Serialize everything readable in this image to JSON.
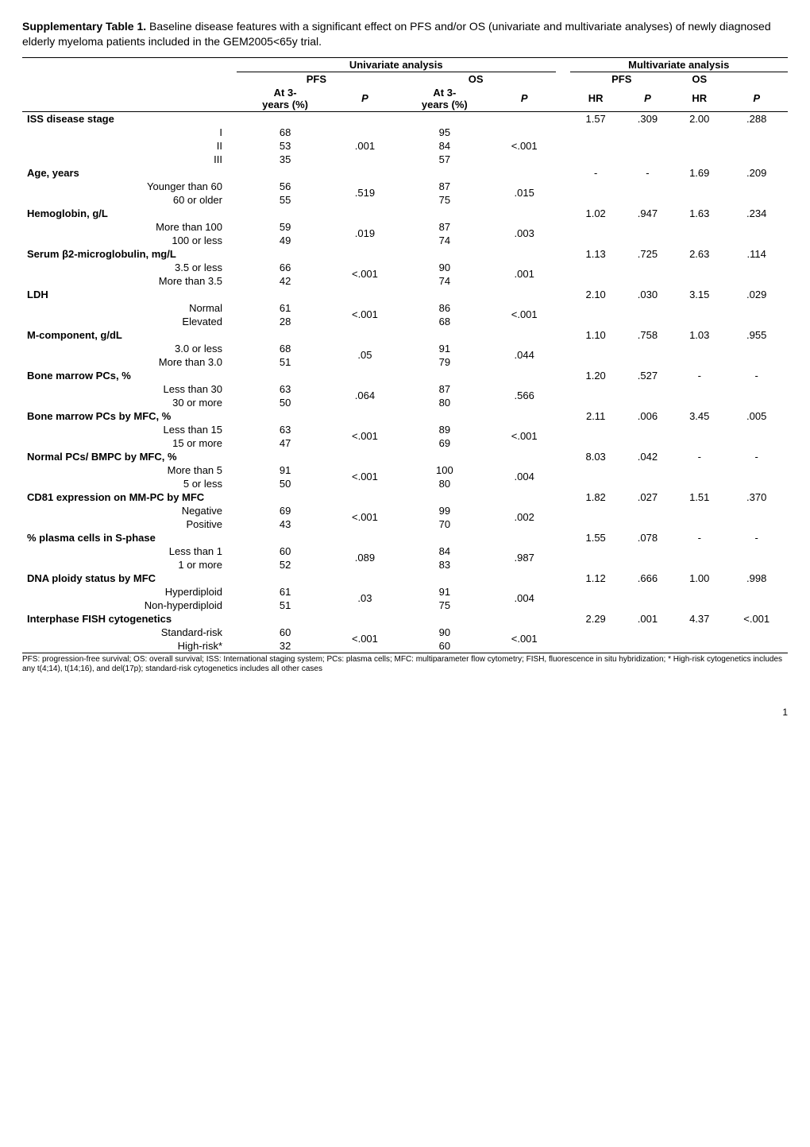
{
  "title_bold": "Supplementary Table 1.",
  "title_rest": " Baseline disease features with a significant effect on PFS and/or OS (univariate and multivariate analyses) of newly diagnosed elderly myeloma patients included in the GEM2005<65y trial.",
  "headers": {
    "uni": "Univariate analysis",
    "multi": "Multivariate analysis",
    "pfs": "PFS",
    "os": "OS",
    "at3": "At 3-years (%)",
    "p": "P",
    "hr": "HR"
  },
  "groups": [
    {
      "name": "ISS disease stage",
      "multi": {
        "pfs_hr": "1.57",
        "pfs_p": ".309",
        "os_hr": "2.00",
        "os_p": ".288"
      },
      "uni_p_pfs": ".001",
      "uni_p_os": "<.001",
      "rows": [
        {
          "label": "I",
          "pfs": "68",
          "os": "95"
        },
        {
          "label": "II",
          "pfs": "53",
          "os": "84"
        },
        {
          "label": "III",
          "pfs": "35",
          "os": "57"
        }
      ]
    },
    {
      "name": "Age, years",
      "multi": {
        "pfs_hr": "-",
        "pfs_p": "-",
        "os_hr": "1.69",
        "os_p": ".209"
      },
      "uni_p_pfs": ".519",
      "uni_p_os": ".015",
      "rows": [
        {
          "label": "Younger than 60",
          "pfs": "56",
          "os": "87"
        },
        {
          "label": "60 or older",
          "pfs": "55",
          "os": "75"
        }
      ]
    },
    {
      "name": "Hemoglobin, g/L",
      "multi": {
        "pfs_hr": "1.02",
        "pfs_p": ".947",
        "os_hr": "1.63",
        "os_p": ".234"
      },
      "uni_p_pfs": ".019",
      "uni_p_os": ".003",
      "rows": [
        {
          "label": "More than 100",
          "pfs": "59",
          "os": "87"
        },
        {
          "label": "100 or less",
          "pfs": "49",
          "os": "74"
        }
      ]
    },
    {
      "name": "Serum β2-microglobulin, mg/L",
      "multi": {
        "pfs_hr": "1.13",
        "pfs_p": ".725",
        "os_hr": "2.63",
        "os_p": ".114"
      },
      "uni_p_pfs": "<.001",
      "uni_p_os": ".001",
      "rows": [
        {
          "label": "3.5 or less",
          "pfs": "66",
          "os": "90"
        },
        {
          "label": "More than 3.5",
          "pfs": "42",
          "os": "74"
        }
      ]
    },
    {
      "name": "LDH",
      "multi": {
        "pfs_hr": "2.10",
        "pfs_p": ".030",
        "os_hr": "3.15",
        "os_p": ".029"
      },
      "uni_p_pfs": "<.001",
      "uni_p_os": "<.001",
      "rows": [
        {
          "label": "Normal",
          "pfs": "61",
          "os": "86"
        },
        {
          "label": "Elevated",
          "pfs": "28",
          "os": "68"
        }
      ]
    },
    {
      "name": "M-component, g/dL",
      "multi": {
        "pfs_hr": "1.10",
        "pfs_p": ".758",
        "os_hr": "1.03",
        "os_p": ".955"
      },
      "uni_p_pfs": ".05",
      "uni_p_os": ".044",
      "rows": [
        {
          "label": "3.0 or less",
          "pfs": "68",
          "os": "91"
        },
        {
          "label": "More than 3.0",
          "pfs": "51",
          "os": "79"
        }
      ]
    },
    {
      "name": "Bone marrow PCs, %",
      "multi": {
        "pfs_hr": "1.20",
        "pfs_p": ".527",
        "os_hr": "-",
        "os_p": "-"
      },
      "uni_p_pfs": ".064",
      "uni_p_os": ".566",
      "rows": [
        {
          "label": "Less than 30",
          "pfs": "63",
          "os": "87"
        },
        {
          "label": "30 or more",
          "pfs": "50",
          "os": "80"
        }
      ]
    },
    {
      "name": "Bone marrow PCs by MFC, %",
      "multi": {
        "pfs_hr": "2.11",
        "pfs_p": ".006",
        "os_hr": "3.45",
        "os_p": ".005"
      },
      "uni_p_pfs": "<.001",
      "uni_p_os": "<.001",
      "rows": [
        {
          "label": "Less than 15",
          "pfs": "63",
          "os": "89"
        },
        {
          "label": "15 or more",
          "pfs": "47",
          "os": "69"
        }
      ]
    },
    {
      "name": "Normal PCs/ BMPC by MFC, %",
      "multi": {
        "pfs_hr": "8.03",
        "pfs_p": ".042",
        "os_hr": "-",
        "os_p": "-"
      },
      "uni_p_pfs": "<.001",
      "uni_p_os": ".004",
      "rows": [
        {
          "label": "More than 5",
          "pfs": "91",
          "os": "100"
        },
        {
          "label": "5 or less",
          "pfs": "50",
          "os": "80"
        }
      ]
    },
    {
      "name": "CD81 expression on MM-PC by MFC",
      "multi": {
        "pfs_hr": "1.82",
        "pfs_p": ".027",
        "os_hr": "1.51",
        "os_p": ".370"
      },
      "uni_p_pfs": "<.001",
      "uni_p_os": ".002",
      "rows": [
        {
          "label": "Negative",
          "pfs": "69",
          "os": "99"
        },
        {
          "label": "Positive",
          "pfs": "43",
          "os": "70"
        }
      ]
    },
    {
      "name": "% plasma cells in S-phase",
      "multi": {
        "pfs_hr": "1.55",
        "pfs_p": ".078",
        "os_hr": "-",
        "os_p": "-"
      },
      "uni_p_pfs": ".089",
      "uni_p_os": ".987",
      "rows": [
        {
          "label": "Less than 1",
          "pfs": "60",
          "os": "84"
        },
        {
          "label": "1 or more",
          "pfs": "52",
          "os": "83"
        }
      ]
    },
    {
      "name": "DNA ploidy status by MFC",
      "multi": {
        "pfs_hr": "1.12",
        "pfs_p": ".666",
        "os_hr": "1.00",
        "os_p": ".998"
      },
      "uni_p_pfs": ".03",
      "uni_p_os": ".004",
      "rows": [
        {
          "label": "Hyperdiploid",
          "pfs": "61",
          "os": "91"
        },
        {
          "label": "Non-hyperdiploid",
          "pfs": "51",
          "os": "75"
        }
      ]
    },
    {
      "name": "Interphase FISH cytogenetics",
      "multi": {
        "pfs_hr": "2.29",
        "pfs_p": ".001",
        "os_hr": "4.37",
        "os_p": "<.001"
      },
      "uni_p_pfs": "<.001",
      "uni_p_os": "<.001",
      "rows": [
        {
          "label": "Standard-risk",
          "pfs": "60",
          "os": "90"
        },
        {
          "label": "High-risk*",
          "pfs": "32",
          "os": "60"
        }
      ]
    }
  ],
  "footnote": "PFS: progression-free survival; OS: overall survival; ISS: International staging system; PCs: plasma cells; MFC: multiparameter flow cytometry; FISH, fluorescence in situ hybridization; * High-risk cytogenetics includes any t(4;14), t(14;16), and del(17p); standard-risk cytogenetics includes all other cases",
  "page": "1"
}
